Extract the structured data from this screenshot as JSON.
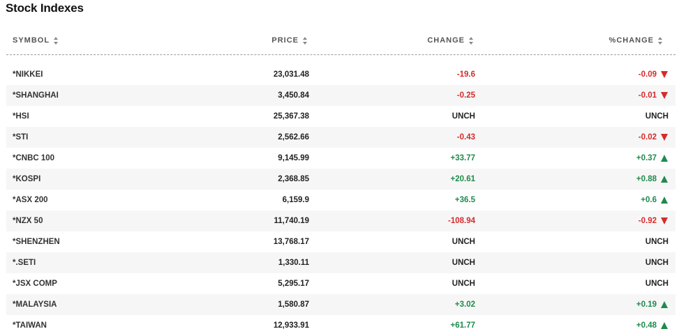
{
  "title": "Stock Indexes",
  "columns": {
    "symbol": "SYMBOL",
    "price": "PRICE",
    "change": "CHANGE",
    "pct_change": "%CHANGE"
  },
  "colors": {
    "down": "#d52b2b",
    "up": "#1f8a4c",
    "flat": "#222222"
  },
  "rows": [
    {
      "symbol": "*NIKKEI",
      "price": "23,031.48",
      "change": "-19.6",
      "pct": "-0.09",
      "dir": "down"
    },
    {
      "symbol": "*SHANGHAI",
      "price": "3,450.84",
      "change": "-0.25",
      "pct": "-0.01",
      "dir": "down"
    },
    {
      "symbol": "*HSI",
      "price": "25,367.38",
      "change": "UNCH",
      "pct": "UNCH",
      "dir": "flat"
    },
    {
      "symbol": "*STI",
      "price": "2,562.66",
      "change": "-0.43",
      "pct": "-0.02",
      "dir": "down"
    },
    {
      "symbol": "*CNBC 100",
      "price": "9,145.99",
      "change": "+33.77",
      "pct": "+0.37",
      "dir": "up"
    },
    {
      "symbol": "*KOSPI",
      "price": "2,368.85",
      "change": "+20.61",
      "pct": "+0.88",
      "dir": "up"
    },
    {
      "symbol": "*ASX 200",
      "price": "6,159.9",
      "change": "+36.5",
      "pct": "+0.6",
      "dir": "up"
    },
    {
      "symbol": "*NZX 50",
      "price": "11,740.19",
      "change": "-108.94",
      "pct": "-0.92",
      "dir": "down"
    },
    {
      "symbol": "*SHENZHEN",
      "price": "13,768.17",
      "change": "UNCH",
      "pct": "UNCH",
      "dir": "flat"
    },
    {
      "symbol": "*.SETI",
      "price": "1,330.11",
      "change": "UNCH",
      "pct": "UNCH",
      "dir": "flat"
    },
    {
      "symbol": "*JSX COMP",
      "price": "5,295.17",
      "change": "UNCH",
      "pct": "UNCH",
      "dir": "flat"
    },
    {
      "symbol": "*MALAYSIA",
      "price": "1,580.87",
      "change": "+3.02",
      "pct": "+0.19",
      "dir": "up"
    },
    {
      "symbol": "*TAIWAN",
      "price": "12,933.91",
      "change": "+61.77",
      "pct": "+0.48",
      "dir": "up"
    }
  ]
}
